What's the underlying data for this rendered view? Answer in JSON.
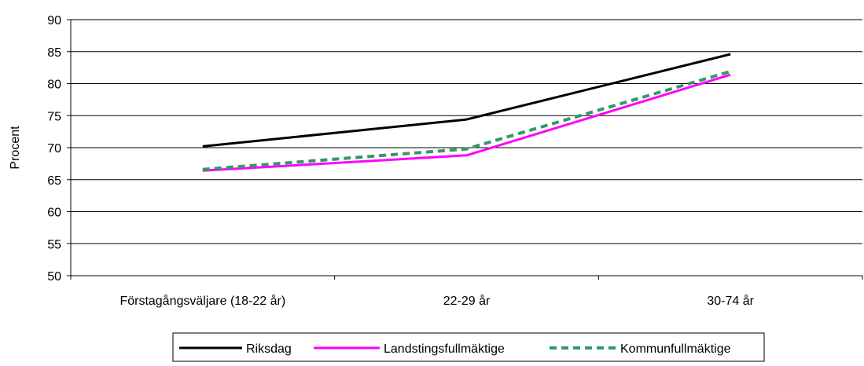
{
  "chart_data": {
    "type": "line",
    "ylabel": "Procent",
    "xlabel": "",
    "categories": [
      "Förstagångsväljare (18-22 år)",
      "22-29 år",
      "30-74 år"
    ],
    "ylim": [
      50,
      90
    ],
    "yticks": [
      50,
      55,
      60,
      65,
      70,
      75,
      80,
      85,
      90
    ],
    "grid": true,
    "legend_position": "bottom",
    "series": [
      {
        "name": "Riksdag",
        "values": [
          70.2,
          74.4,
          84.6
        ],
        "color": "#000000",
        "style": "solid"
      },
      {
        "name": "Landstingsfullmäktige",
        "values": [
          66.4,
          68.8,
          81.4
        ],
        "color": "#ff00ff",
        "style": "solid"
      },
      {
        "name": "Kommunfullmäktige",
        "values": [
          66.6,
          69.8,
          81.9
        ],
        "color": "#339966",
        "style": "dashed"
      }
    ]
  }
}
